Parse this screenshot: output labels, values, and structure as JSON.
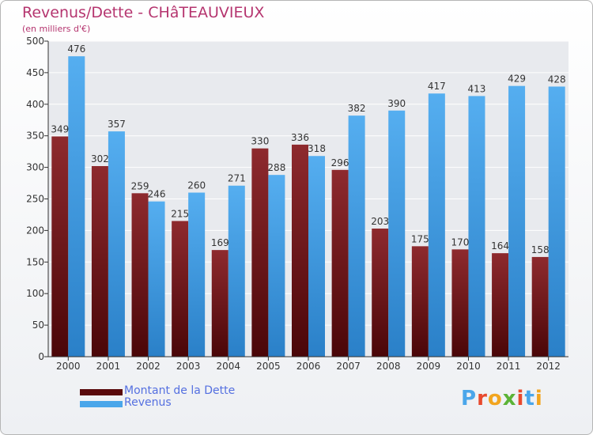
{
  "header": {
    "title": "Revenus/Dette - CHâTEAUVIEUX",
    "subtitle": "(en milliers d'€)"
  },
  "colors": {
    "debt": "#8a2226",
    "debt_dark": "#4a0608",
    "revenue": "#4aa6ea",
    "revenue_dark": "#2a80c8",
    "accent": "#b5356f",
    "legend_text": "#5570e0"
  },
  "legend": {
    "items": [
      {
        "label": "Montant de la Dette",
        "color": "#5a0a0c"
      },
      {
        "label": "Revenus",
        "color": "#4aa6ea"
      }
    ]
  },
  "brand": {
    "logo_text": "Proxiti"
  },
  "chart_data": {
    "type": "bar",
    "categories": [
      "2000",
      "2001",
      "2002",
      "2003",
      "2004",
      "2005",
      "2006",
      "2007",
      "2008",
      "2009",
      "2010",
      "2011",
      "2012"
    ],
    "series": [
      {
        "name": "Montant de la Dette",
        "values": [
          349,
          302,
          259,
          215,
          169,
          330,
          336,
          296,
          203,
          175,
          170,
          164,
          158
        ]
      },
      {
        "name": "Revenus",
        "values": [
          476,
          357,
          246,
          260,
          271,
          288,
          318,
          382,
          390,
          417,
          413,
          429,
          428
        ]
      }
    ],
    "title": "Revenus/Dette - CHâTEAUVIEUX",
    "subtitle": "(en milliers d'€)",
    "ylim": [
      0,
      500
    ],
    "yticks": [
      0,
      50,
      100,
      150,
      200,
      250,
      300,
      350,
      400,
      450,
      500
    ],
    "grid": true,
    "legend_position": "bottom-left"
  }
}
